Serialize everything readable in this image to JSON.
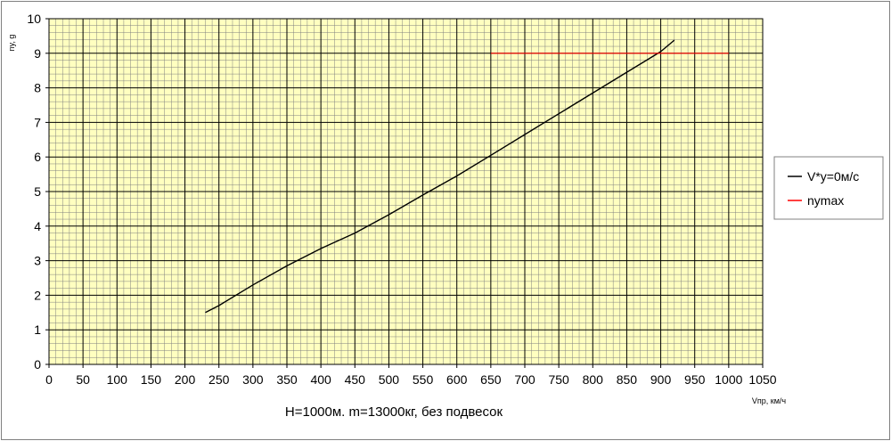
{
  "chart_data": {
    "type": "line",
    "caption": "H=1000м. m=13000кг, без подвесок",
    "xlabel": "Vпр, км/ч",
    "ylabel": "ny, g",
    "xlim": [
      0,
      1050
    ],
    "ylim": [
      0,
      10
    ],
    "x_major_step": 50,
    "x_minor_step": 10,
    "y_major_step": 1,
    "y_minor_step": 0.2,
    "grid": true,
    "legend_position": "right",
    "colors": {
      "plot_bg": "#FFFFC0",
      "major_grid": "#000000",
      "minor_grid": "#808080",
      "series_1": "#000000",
      "series_2": "#FF0000"
    },
    "series": [
      {
        "name": "V*y=0м/с",
        "color": "#000000",
        "points": [
          [
            230,
            1.5
          ],
          [
            250,
            1.7
          ],
          [
            300,
            2.3
          ],
          [
            350,
            2.85
          ],
          [
            400,
            3.35
          ],
          [
            450,
            3.8
          ],
          [
            500,
            4.33
          ],
          [
            550,
            4.9
          ],
          [
            600,
            5.45
          ],
          [
            650,
            6.05
          ],
          [
            700,
            6.65
          ],
          [
            750,
            7.25
          ],
          [
            800,
            7.85
          ],
          [
            850,
            8.45
          ],
          [
            900,
            9.05
          ],
          [
            920,
            9.38
          ]
        ]
      },
      {
        "name": "nymax",
        "color": "#FF0000",
        "points": [
          [
            650,
            9.0
          ],
          [
            1000,
            9.0
          ]
        ]
      }
    ]
  }
}
